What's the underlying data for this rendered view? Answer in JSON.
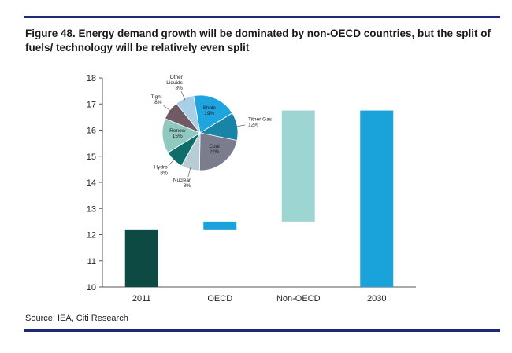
{
  "figure": {
    "title": "Figure 48. Energy demand growth will be dominated by non-OECD countries, but the split of fuels/ technology will be relatively even split",
    "source": "Source: IEA, Citi Research"
  },
  "chart_data": [
    {
      "type": "bar",
      "subtype": "waterfall",
      "title": "",
      "xlabel": "",
      "ylabel": "",
      "categories": [
        "2011",
        "OECD",
        "Non-OECD",
        "2030"
      ],
      "bars": [
        {
          "category": "2011",
          "low": 10,
          "high": 12.2,
          "color": "#0d4a44"
        },
        {
          "category": "OECD",
          "low": 12.2,
          "high": 12.5,
          "color": "#19a3da"
        },
        {
          "category": "Non-OECD",
          "low": 12.5,
          "high": 16.75,
          "color": "#9dd5d2"
        },
        {
          "category": "2030",
          "low": 10,
          "high": 16.75,
          "color": "#19a3da"
        }
      ],
      "ylim": [
        10,
        18
      ],
      "yticks": [
        10,
        11,
        12,
        13,
        14,
        15,
        16,
        17,
        18
      ],
      "grid": false
    },
    {
      "type": "pie",
      "title": "",
      "slices": [
        {
          "label": "Shale",
          "value": 19,
          "pct_label": "19%",
          "color": "#1ea5df"
        },
        {
          "label": "Tither Gas",
          "value": 12,
          "pct_label": "12%",
          "color": "#1a84a6"
        },
        {
          "label": "Coal",
          "value": 22,
          "pct_label": "22%",
          "color": "#7b7d8e"
        },
        {
          "label": "Nuclear",
          "value": 8,
          "pct_label": "8%",
          "color": "#b7ccd4"
        },
        {
          "label": "Hydro",
          "value": 8,
          "pct_label": "8%",
          "color": "#0f6e6a"
        },
        {
          "label": "Renew",
          "value": 15,
          "pct_label": "15%",
          "color": "#8fc9bf"
        },
        {
          "label": "Tight",
          "value": 8,
          "pct_label": "8%",
          "color": "#6f5a66"
        },
        {
          "label": "Other Liquids",
          "value": 8,
          "pct_label": "8%",
          "color": "#a7cfe6"
        }
      ]
    }
  ]
}
